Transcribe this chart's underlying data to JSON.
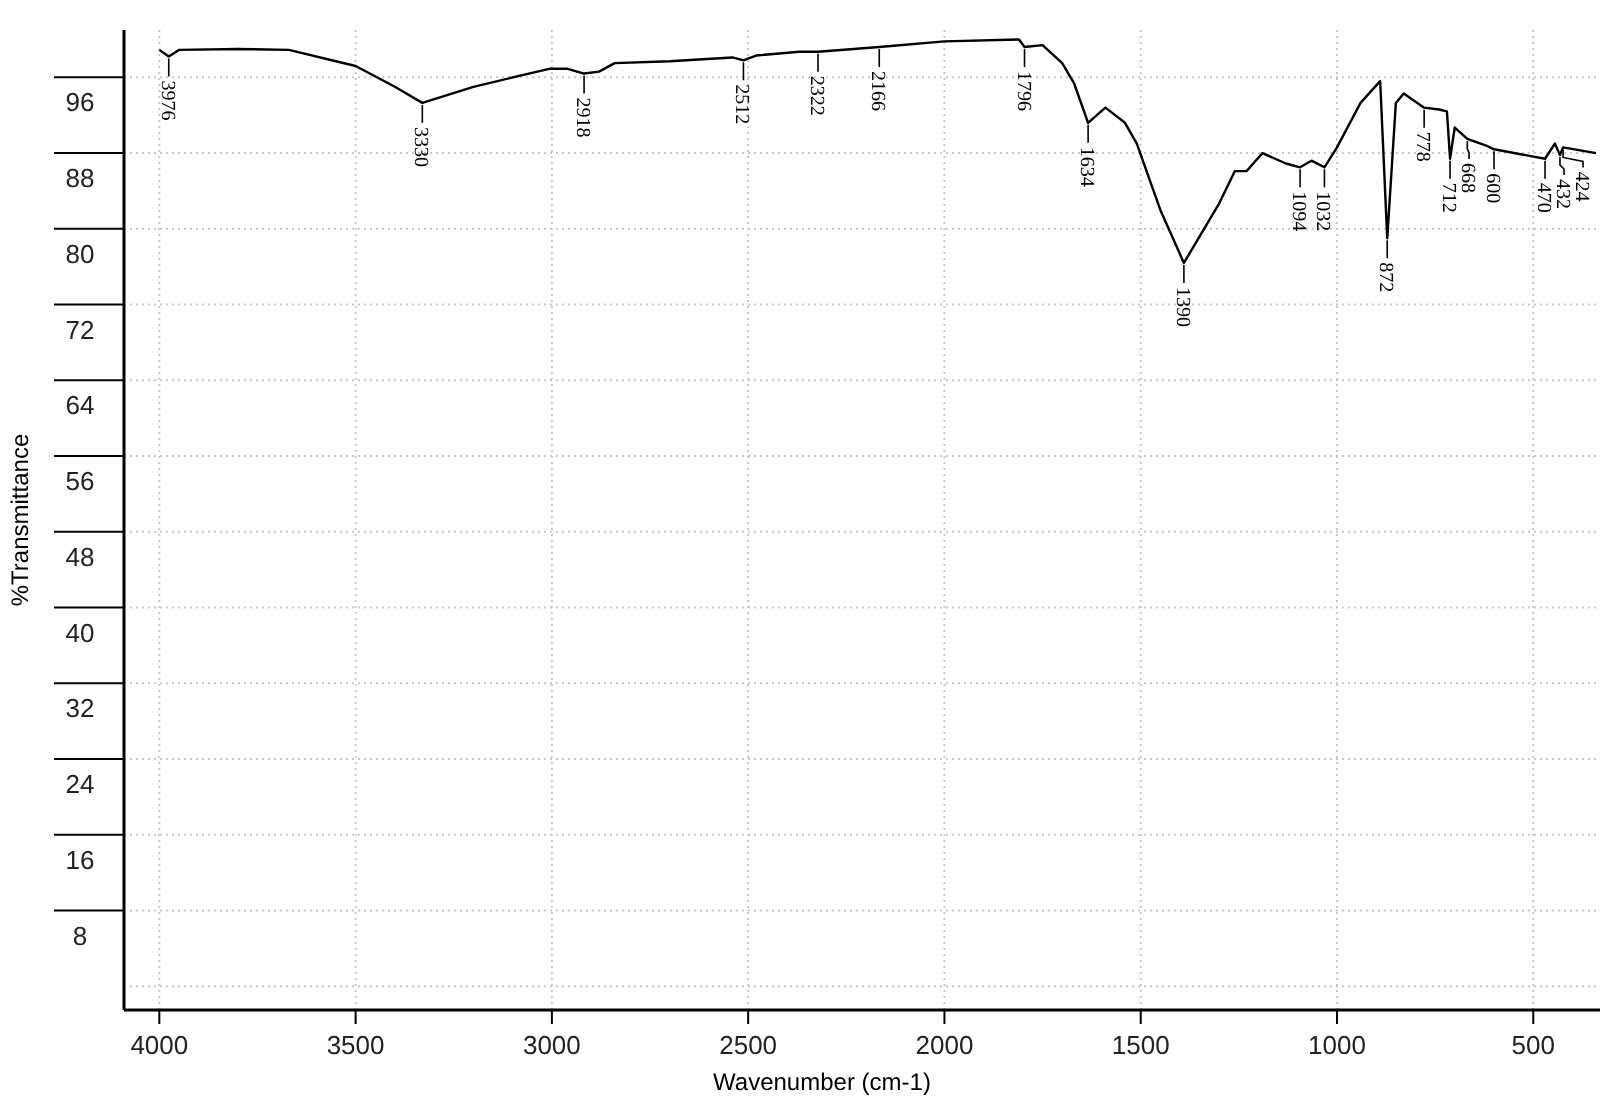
{
  "chart_data": {
    "type": "line",
    "xlabel": "Wavenumber (cm-1)",
    "ylabel": "%Transmittance",
    "xlim": [
      4090,
      330
    ],
    "ylim": [
      -2.5,
      101
    ],
    "xticks": [
      4000,
      3500,
      3000,
      2500,
      2000,
      1500,
      1000,
      500
    ],
    "yticks": [
      {
        "value": 0,
        "label": null
      },
      8,
      16,
      24,
      32,
      40,
      48,
      56,
      64,
      72,
      80,
      88,
      96
    ],
    "grid": true,
    "marker": "none",
    "line_style": "solid",
    "series": [
      {
        "color": "#000000",
        "x": [
          4000,
          3976,
          3950,
          3800,
          3670,
          3500,
          3400,
          3330,
          3200,
          3007,
          2960,
          2918,
          2880,
          2840,
          2700,
          2540,
          2512,
          2480,
          2370,
          2322,
          2166,
          2000,
          1810,
          1796,
          1750,
          1700,
          1670,
          1634,
          1590,
          1540,
          1510,
          1450,
          1390,
          1300,
          1260,
          1230,
          1190,
          1130,
          1094,
          1065,
          1032,
          1000,
          940,
          890,
          872,
          850,
          830,
          778,
          740,
          720,
          712,
          700,
          668,
          620,
          600,
          470,
          445,
          432,
          424,
          340
        ],
        "values": [
          98.9,
          98.2,
          98.9,
          99.0,
          98.9,
          97.2,
          95.0,
          93.3,
          95.0,
          96.9,
          96.9,
          96.4,
          96.6,
          97.5,
          97.7,
          98.1,
          97.8,
          98.3,
          98.7,
          98.7,
          99.2,
          99.8,
          100.0,
          99.2,
          99.4,
          97.5,
          95.4,
          91.2,
          92.8,
          91.2,
          89.0,
          82.0,
          76.4,
          82.7,
          86.1,
          86.1,
          88.0,
          86.9,
          86.5,
          87.2,
          86.5,
          88.6,
          93.3,
          95.6,
          79.0,
          93.3,
          94.3,
          92.8,
          92.6,
          92.4,
          87.4,
          90.7,
          89.5,
          88.8,
          88.4,
          87.4,
          89.0,
          87.8,
          88.6,
          88.0
        ]
      }
    ],
    "annotations": [
      {
        "text": "3976",
        "x": 3976,
        "y": 98.2
      },
      {
        "text": "3330",
        "x": 3330,
        "y": 93.3
      },
      {
        "text": "2918",
        "x": 2918,
        "y": 96.4
      },
      {
        "text": "2512",
        "x": 2512,
        "y": 97.8
      },
      {
        "text": "2322",
        "x": 2322,
        "y": 98.7
      },
      {
        "text": "2166",
        "x": 2166,
        "y": 99.2
      },
      {
        "text": "1796",
        "x": 1796,
        "y": 99.2
      },
      {
        "text": "1634",
        "x": 1634,
        "y": 91.2
      },
      {
        "text": "1390",
        "x": 1390,
        "y": 76.4
      },
      {
        "text": "1094",
        "x": 1094,
        "y": 86.5
      },
      {
        "text": "1032",
        "x": 1032,
        "y": 86.5
      },
      {
        "text": "872",
        "x": 872,
        "y": 79.0
      },
      {
        "text": "778",
        "x": 778,
        "y": 92.8
      },
      {
        "text": "712",
        "x": 712,
        "y": 87.4
      },
      {
        "text": "668",
        "x": 668,
        "y": 89.5
      },
      {
        "text": "600",
        "x": 600,
        "y": 88.4
      },
      {
        "text": "470",
        "x": 470,
        "y": 87.4
      },
      {
        "text": "432",
        "x": 432,
        "y": 87.8
      },
      {
        "text": "424",
        "x": 424,
        "y": 88.6
      }
    ]
  }
}
